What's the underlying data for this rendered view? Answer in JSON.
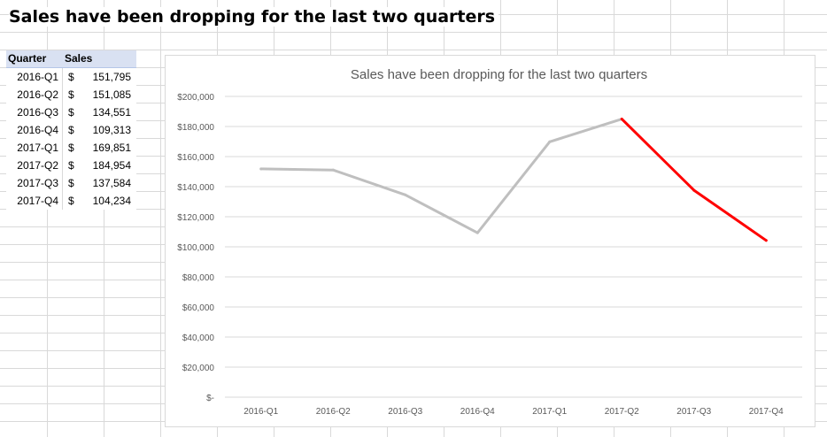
{
  "page": {
    "title": "Sales have been dropping for the last two quarters"
  },
  "table": {
    "headers": {
      "quarter": "Quarter",
      "sales": "Sales"
    },
    "currency_symbol": "$",
    "rows": [
      {
        "quarter": "2016-Q1",
        "sales": "151,795"
      },
      {
        "quarter": "2016-Q2",
        "sales": "151,085"
      },
      {
        "quarter": "2016-Q3",
        "sales": "134,551"
      },
      {
        "quarter": "2016-Q4",
        "sales": "109,313"
      },
      {
        "quarter": "2017-Q1",
        "sales": "169,851"
      },
      {
        "quarter": "2017-Q2",
        "sales": "184,954"
      },
      {
        "quarter": "2017-Q3",
        "sales": "137,584"
      },
      {
        "quarter": "2017-Q4",
        "sales": "104,234"
      }
    ]
  },
  "chart_data": {
    "type": "line",
    "title": "Sales have been dropping for the last two quarters",
    "xlabel": "",
    "ylabel": "",
    "categories": [
      "2016-Q1",
      "2016-Q2",
      "2016-Q3",
      "2016-Q4",
      "2017-Q1",
      "2017-Q2",
      "2017-Q3",
      "2017-Q4"
    ],
    "values": [
      151795,
      151085,
      134551,
      109313,
      169851,
      184954,
      137584,
      104234
    ],
    "ylim": [
      0,
      200000
    ],
    "yticks": [
      0,
      20000,
      40000,
      60000,
      80000,
      100000,
      120000,
      140000,
      160000,
      180000,
      200000
    ],
    "ytick_labels": [
      "$-",
      "$20,000",
      "$40,000",
      "$60,000",
      "$80,000",
      "$100,000",
      "$120,000",
      "$140,000",
      "$160,000",
      "$180,000",
      "$200,000"
    ],
    "grid": true,
    "legend": "none",
    "colors": {
      "base_line": "#bfbfbf",
      "highlight_line": "#ff0000",
      "gridline": "#d9d9d9",
      "axis_text": "#595959"
    },
    "highlight_from_category": "2017-Q2"
  }
}
